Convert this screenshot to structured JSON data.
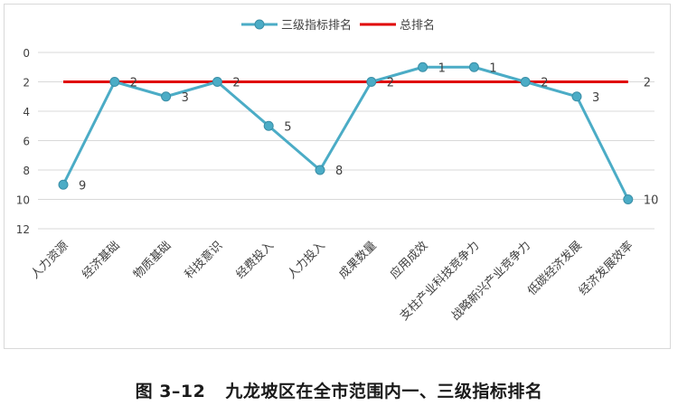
{
  "chart_data": {
    "type": "line",
    "categories": [
      "人力资源",
      "经济基础",
      "物质基础",
      "科技意识",
      "经费投入",
      "人力投入",
      "成果数量",
      "应用成效",
      "支柱产业科技竞争力",
      "战略新兴产业竞争力",
      "低碳经济发展",
      "经济发展效率"
    ],
    "series": [
      {
        "name": "三级指标排名",
        "values": [
          9,
          2,
          3,
          2,
          5,
          8,
          2,
          1,
          1,
          2,
          3,
          10
        ],
        "color": "#4bacc6"
      },
      {
        "name": "总排名",
        "values": [
          2,
          2,
          2,
          2,
          2,
          2,
          2,
          2,
          2,
          2,
          2,
          2
        ],
        "color": "#e00000"
      }
    ],
    "total_rank_label": "2",
    "y_ticks": [
      "0",
      "2",
      "4",
      "6",
      "8",
      "10",
      "12"
    ],
    "ylim": [
      0,
      12
    ],
    "y_inverted": true,
    "grid": true,
    "legend_position": "top-center"
  },
  "caption": {
    "figure_no": "图 3–12",
    "title": "九龙坡区在全市范围内一、三级指标排名"
  }
}
